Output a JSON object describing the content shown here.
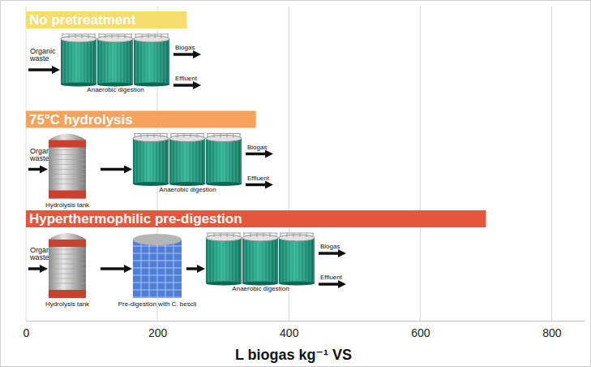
{
  "chart_data": {
    "type": "bar",
    "orientation": "horizontal",
    "categories": [
      "No pretreatment",
      "75°C hydrolysis",
      "Hyperthermophilic pre-digestion"
    ],
    "values": [
      245,
      350,
      700
    ],
    "colors": [
      "#f5dc6e",
      "#f4a25c",
      "#e5563a"
    ],
    "xlabel": "L biogas kg⁻¹ VS",
    "xlim": [
      0,
      850
    ],
    "xticks": [
      0,
      200,
      400,
      600,
      800
    ],
    "grid": true,
    "tick_labels": "x",
    "data_labels": false,
    "annotations": [
      {
        "input": "Organic waste",
        "steps": [
          "Anaerobic digestion"
        ],
        "outputs": [
          "Biogas",
          "Effluent"
        ]
      },
      {
        "input": "Organic waste",
        "steps": [
          "Hydrolysis tank",
          "Anaerobic digestion"
        ],
        "outputs": [
          "Biogas",
          "Effluent"
        ]
      },
      {
        "input": "Organic waste",
        "steps": [
          "Hydrolysis tank",
          "Pre-digestion with C. bescii",
          "Anaerobic digestion"
        ],
        "outputs": [
          "Biogas",
          "Effluent"
        ]
      }
    ]
  }
}
